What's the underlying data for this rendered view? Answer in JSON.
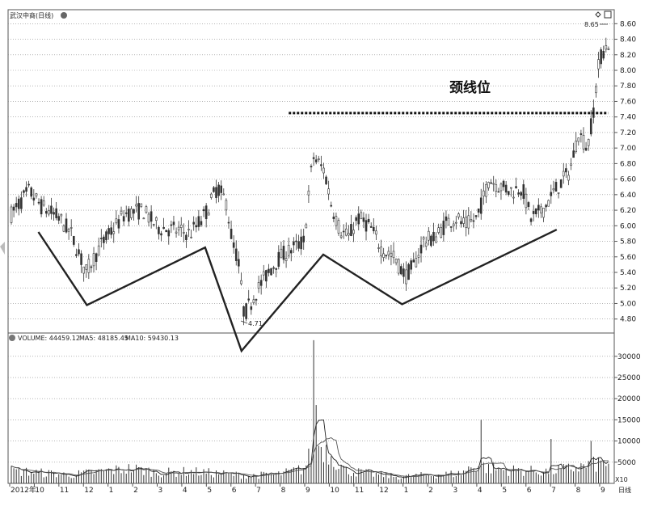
{
  "chart_data": {
    "type": "candlestick",
    "title": "武汉中商(日线)",
    "price_axis": {
      "ticks": [
        "8.60",
        "8.40",
        "8.20",
        "8.00",
        "7.80",
        "7.60",
        "7.40",
        "7.20",
        "7.00",
        "6.80",
        "6.60",
        "6.40",
        "6.20",
        "6.00",
        "5.80",
        "5.60",
        "5.40",
        "5.20",
        "5.00",
        "4.80"
      ],
      "range": [
        4.62,
        8.78
      ],
      "grid": true
    },
    "volume_axis": {
      "ticks": [
        "30000",
        "25000",
        "20000",
        "15000",
        "10000",
        "5000"
      ],
      "range": [
        0,
        35500
      ],
      "unit_label": "X10"
    },
    "time_axis": {
      "labels": [
        "2012年",
        "10",
        "11",
        "12",
        "1",
        "2",
        "3",
        "4",
        "5",
        "6",
        "7",
        "8",
        "9",
        "10",
        "11",
        "12",
        "1",
        "2",
        "3",
        "4",
        "5",
        "6",
        "7",
        "8",
        "9"
      ],
      "right_label": "日线"
    },
    "annotations": {
      "low_price": "4.71",
      "high_price": "8.65",
      "neckline_text": "颈线位",
      "neckline_level": 7.45
    },
    "volume_legend": {
      "volume": "VOLUME: 44459.12",
      "ma5": "MA5: 48185.45",
      "ma10": "MA10: 59430.13"
    },
    "pattern_points": [
      {
        "t": 0.05,
        "price": 5.92
      },
      {
        "t": 0.13,
        "price": 4.98
      },
      {
        "t": 0.325,
        "price": 5.72
      },
      {
        "t": 0.385,
        "price": 4.39
      },
      {
        "t": 0.52,
        "price": 5.63
      },
      {
        "t": 0.65,
        "price": 4.99
      },
      {
        "t": 0.905,
        "price": 5.95
      }
    ],
    "price_anchors": [
      [
        0.0,
        6.15
      ],
      [
        0.03,
        6.45
      ],
      [
        0.05,
        6.25
      ],
      [
        0.08,
        6.1
      ],
      [
        0.1,
        5.9
      ],
      [
        0.125,
        5.4
      ],
      [
        0.15,
        5.75
      ],
      [
        0.17,
        5.95
      ],
      [
        0.19,
        6.15
      ],
      [
        0.22,
        6.2
      ],
      [
        0.245,
        5.98
      ],
      [
        0.27,
        5.95
      ],
      [
        0.3,
        5.9
      ],
      [
        0.325,
        6.15
      ],
      [
        0.345,
        6.5
      ],
      [
        0.36,
        6.3
      ],
      [
        0.37,
        5.8
      ],
      [
        0.38,
        5.55
      ],
      [
        0.39,
        4.85
      ],
      [
        0.41,
        5.15
      ],
      [
        0.43,
        5.4
      ],
      [
        0.45,
        5.6
      ],
      [
        0.47,
        5.7
      ],
      [
        0.49,
        5.8
      ],
      [
        0.505,
        6.9
      ],
      [
        0.525,
        6.7
      ],
      [
        0.535,
        6.3
      ],
      [
        0.55,
        5.95
      ],
      [
        0.565,
        5.85
      ],
      [
        0.58,
        6.1
      ],
      [
        0.6,
        6.0
      ],
      [
        0.62,
        5.7
      ],
      [
        0.64,
        5.6
      ],
      [
        0.66,
        5.35
      ],
      [
        0.675,
        5.5
      ],
      [
        0.69,
        5.8
      ],
      [
        0.71,
        5.85
      ],
      [
        0.73,
        6.05
      ],
      [
        0.745,
        6.1
      ],
      [
        0.76,
        6.0
      ],
      [
        0.78,
        6.1
      ],
      [
        0.8,
        6.6
      ],
      [
        0.82,
        6.5
      ],
      [
        0.84,
        6.45
      ],
      [
        0.855,
        6.5
      ],
      [
        0.87,
        6.1
      ],
      [
        0.89,
        6.2
      ],
      [
        0.91,
        6.45
      ],
      [
        0.935,
        6.7
      ],
      [
        0.95,
        7.2
      ],
      [
        0.965,
        7.0
      ],
      [
        0.975,
        7.5
      ],
      [
        0.985,
        8.15
      ],
      [
        1.0,
        8.35
      ]
    ],
    "volume_anchors": [
      [
        0.0,
        3000
      ],
      [
        0.05,
        2500
      ],
      [
        0.1,
        2000
      ],
      [
        0.15,
        2800
      ],
      [
        0.2,
        3500
      ],
      [
        0.25,
        2500
      ],
      [
        0.3,
        2800
      ],
      [
        0.35,
        2300
      ],
      [
        0.4,
        1800
      ],
      [
        0.45,
        2200
      ],
      [
        0.49,
        3500
      ],
      [
        0.505,
        8000
      ],
      [
        0.52,
        9000
      ],
      [
        0.54,
        6000
      ],
      [
        0.56,
        3000
      ],
      [
        0.6,
        2300
      ],
      [
        0.65,
        1500
      ],
      [
        0.7,
        2000
      ],
      [
        0.75,
        2300
      ],
      [
        0.78,
        4500
      ],
      [
        0.8,
        3500
      ],
      [
        0.85,
        3000
      ],
      [
        0.9,
        2800
      ],
      [
        0.95,
        3800
      ],
      [
        1.0,
        5000
      ]
    ],
    "volume_spikes": [
      [
        0.505,
        33800
      ],
      [
        0.51,
        18500
      ],
      [
        0.785,
        15000
      ],
      [
        0.905,
        10500
      ],
      [
        0.97,
        10000
      ]
    ]
  }
}
